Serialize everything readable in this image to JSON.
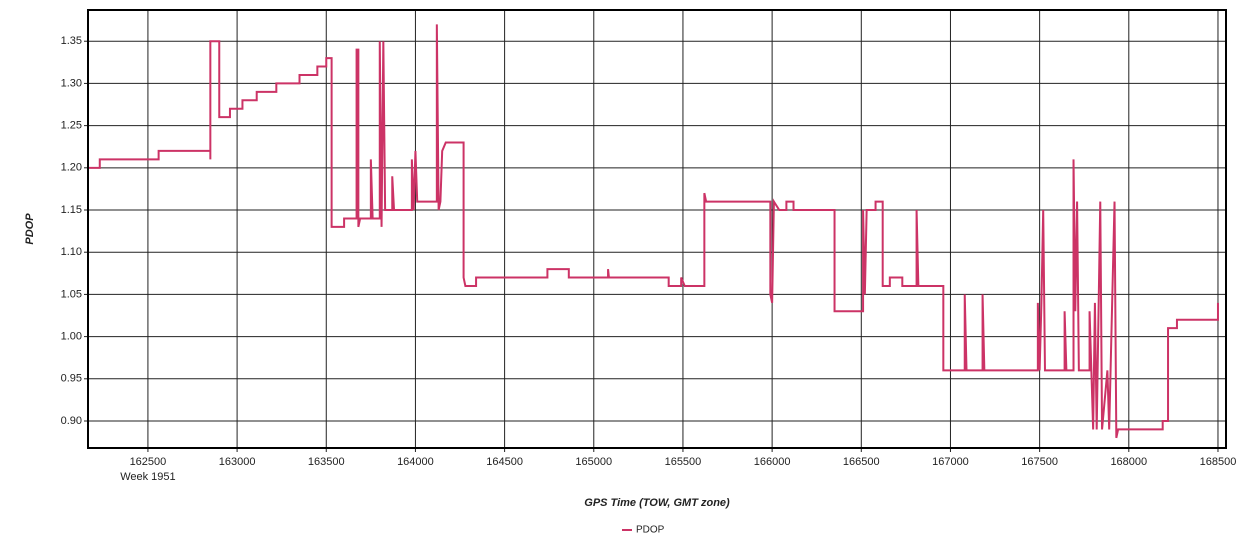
{
  "chart_data": {
    "type": "line",
    "xlabel": "GPS Time (TOW, GMT zone)",
    "ylabel": "PDOP",
    "annotation": "Week 1951",
    "xlim": [
      162164,
      168545
    ],
    "ylim": [
      0.868,
      1.387
    ],
    "xticks": [
      162500,
      163000,
      163500,
      164000,
      164500,
      165000,
      165500,
      166000,
      166500,
      167000,
      167500,
      168000,
      168500
    ],
    "yticks": [
      {
        "value": 0.9,
        "label": "0.90"
      },
      {
        "value": 0.95,
        "label": "0.95"
      },
      {
        "value": 1,
        "label": "1.00"
      },
      {
        "value": 1.05,
        "label": "1.05"
      },
      {
        "value": 1.1,
        "label": "1.10"
      },
      {
        "value": 1.15,
        "label": "1.15"
      },
      {
        "value": 1.2,
        "label": "1.20"
      },
      {
        "value": 1.25,
        "label": "1.25"
      },
      {
        "value": 1.3,
        "label": "1.30"
      },
      {
        "value": 1.35,
        "label": "1.35"
      }
    ],
    "grid": true,
    "legend": "bottom",
    "x": [
      162170,
      162230,
      162230,
      162560,
      162560,
      162850,
      162850,
      162850,
      162900,
      162900,
      162960,
      162960,
      163030,
      163030,
      163110,
      163110,
      163220,
      163220,
      163350,
      163350,
      163450,
      163450,
      163500,
      163500,
      163530,
      163530,
      163600,
      163600,
      163670,
      163670,
      163680,
      163680,
      163690,
      163750,
      163750,
      163760,
      163800,
      163800,
      163810,
      163820,
      163830,
      163870,
      163870,
      163880,
      163980,
      163980,
      163990,
      164000,
      164010,
      164120,
      164120,
      164130,
      164140,
      164150,
      164170,
      164270,
      164270,
      164280,
      164340,
      164340,
      164740,
      164740,
      164860,
      164860,
      165080,
      165080,
      165085,
      165420,
      165420,
      165490,
      165490,
      165510,
      165620,
      165620,
      165630,
      165990,
      165990,
      166000,
      166010,
      166040,
      166080,
      166080,
      166120,
      166120,
      166350,
      166350,
      166510,
      166510,
      166520,
      166530,
      166580,
      166580,
      166620,
      166620,
      166660,
      166660,
      166730,
      166730,
      166810,
      166810,
      166820,
      166960,
      166960,
      167080,
      167080,
      167090,
      167180,
      167180,
      167190,
      167490,
      167490,
      167500,
      167510,
      167520,
      167530,
      167640,
      167640,
      167650,
      167690,
      167690,
      167700,
      167710,
      167720,
      167780,
      167780,
      167800,
      167810,
      167820,
      167840,
      167850,
      167880,
      167890,
      167920,
      167930,
      167940,
      168190,
      168190,
      168220,
      168220,
      168270,
      168270,
      168500,
      168500
    ],
    "series": [
      {
        "name": "PDOP",
        "color": "#cc3366",
        "values": [
          1.2,
          1.2,
          1.21,
          1.21,
          1.22,
          1.22,
          1.21,
          1.35,
          1.35,
          1.26,
          1.26,
          1.27,
          1.27,
          1.28,
          1.28,
          1.29,
          1.29,
          1.3,
          1.3,
          1.31,
          1.31,
          1.32,
          1.32,
          1.33,
          1.33,
          1.13,
          1.13,
          1.14,
          1.14,
          1.34,
          1.34,
          1.13,
          1.14,
          1.14,
          1.21,
          1.14,
          1.14,
          1.35,
          1.13,
          1.35,
          1.15,
          1.15,
          1.19,
          1.15,
          1.15,
          1.21,
          1.15,
          1.22,
          1.16,
          1.16,
          1.37,
          1.15,
          1.16,
          1.22,
          1.23,
          1.23,
          1.07,
          1.06,
          1.06,
          1.07,
          1.07,
          1.08,
          1.08,
          1.07,
          1.07,
          1.08,
          1.07,
          1.07,
          1.06,
          1.06,
          1.07,
          1.06,
          1.06,
          1.17,
          1.16,
          1.16,
          1.05,
          1.04,
          1.16,
          1.15,
          1.15,
          1.16,
          1.16,
          1.15,
          1.15,
          1.03,
          1.03,
          1.15,
          1.05,
          1.15,
          1.15,
          1.16,
          1.16,
          1.06,
          1.06,
          1.07,
          1.07,
          1.06,
          1.06,
          1.15,
          1.06,
          1.06,
          0.96,
          0.96,
          1.05,
          0.96,
          0.96,
          1.05,
          0.96,
          0.96,
          1.04,
          0.96,
          1.04,
          1.15,
          0.96,
          0.96,
          1.03,
          0.96,
          0.96,
          1.21,
          1.03,
          1.16,
          0.96,
          0.96,
          1.03,
          0.89,
          1.04,
          0.89,
          1.16,
          0.89,
          0.96,
          0.89,
          1.16,
          0.88,
          0.89,
          0.89,
          0.9,
          0.9,
          1.01,
          1.01,
          1.02,
          1.02,
          1.04
        ]
      }
    ]
  }
}
